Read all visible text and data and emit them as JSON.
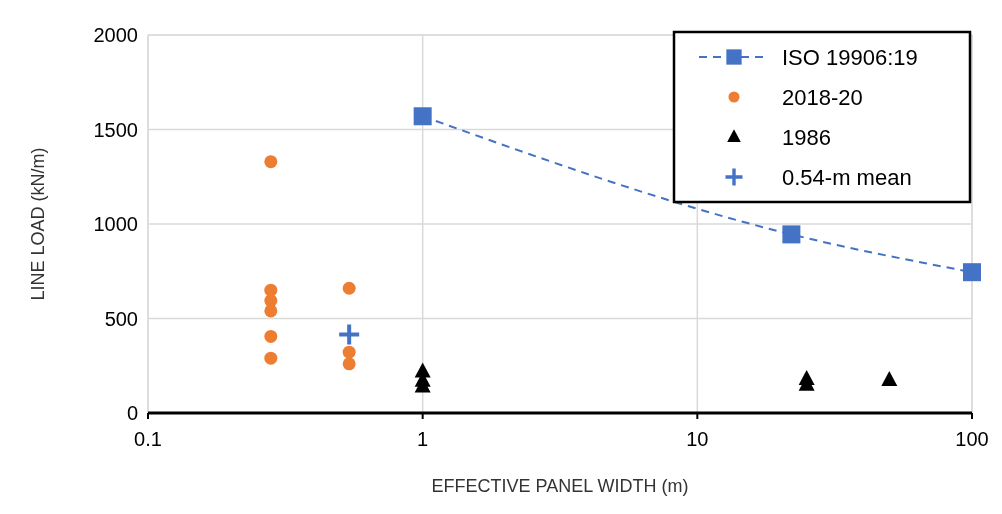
{
  "chart_data": {
    "type": "scatter",
    "xlabel": "EFFECTIVE PANEL WIDTH (m)",
    "ylabel": "LINE LOAD (kN/m)",
    "log": "x",
    "xlim": [
      0.1,
      100
    ],
    "xticks": [
      0.1,
      1,
      10,
      100
    ],
    "ylim": [
      0,
      2000
    ],
    "yticks": [
      0,
      500,
      1000,
      1500,
      2000
    ],
    "grid": true,
    "legend": "top right",
    "series": [
      {
        "name": "ISO 19906:19",
        "type": "line",
        "color": "#4472c4",
        "marker": "square",
        "line_style": "dashed",
        "x": [
          1,
          22,
          100
        ],
        "values": [
          1570,
          945,
          745
        ]
      },
      {
        "name": "2018-20",
        "color": "#ed7d31",
        "marker": "circle",
        "x": [
          0.28,
          0.28,
          0.28,
          0.28,
          0.28,
          0.28,
          0.54,
          0.54,
          0.54
        ],
        "values": [
          1330,
          650,
          595,
          540,
          405,
          290,
          660,
          322,
          260
        ]
      },
      {
        "name": "1986",
        "color": "#000000",
        "marker": "triangle",
        "x": [
          1,
          1,
          1,
          25,
          25,
          50
        ],
        "values": [
          220,
          170,
          140,
          180,
          150,
          175
        ]
      },
      {
        "name": "0.54-m mean",
        "color": "#4472c4",
        "marker": "cross",
        "x": [
          0.54
        ],
        "values": [
          415
        ]
      }
    ]
  }
}
